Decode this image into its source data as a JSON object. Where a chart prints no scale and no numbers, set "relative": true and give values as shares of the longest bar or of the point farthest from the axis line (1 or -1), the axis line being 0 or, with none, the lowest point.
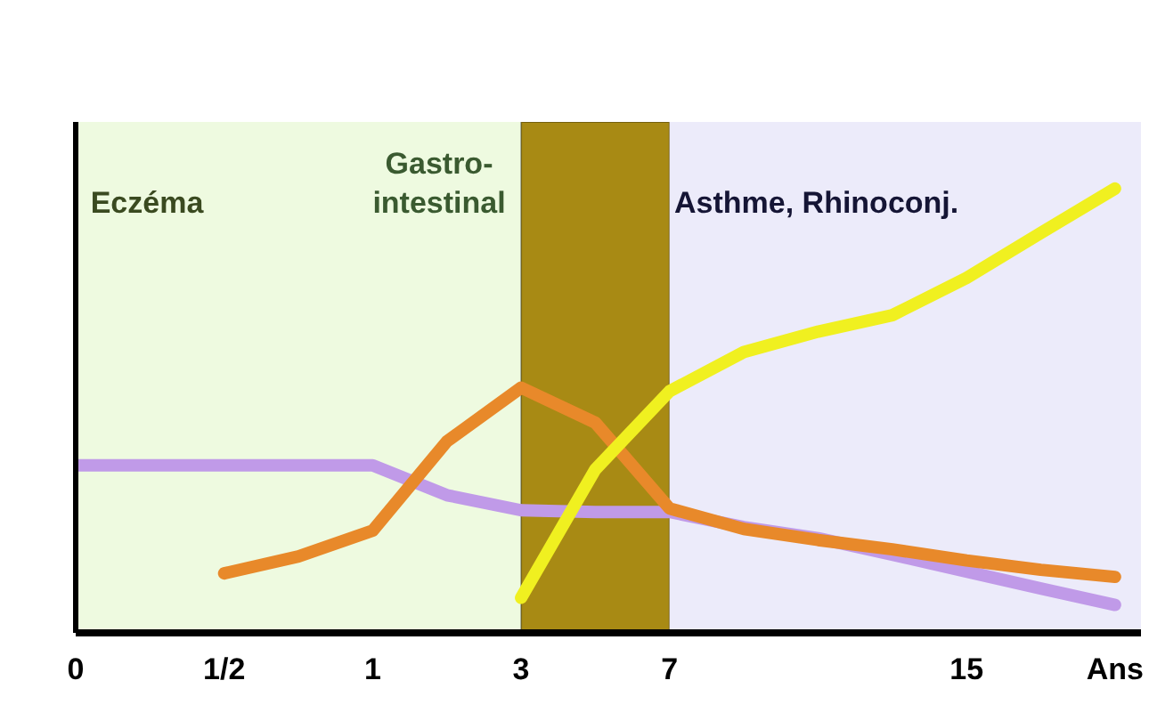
{
  "chart_data": {
    "type": "line",
    "relative": true,
    "categories": [
      "0",
      null,
      "1/2",
      null,
      "1",
      null,
      "3",
      null,
      "7",
      null,
      null,
      null,
      "15",
      null,
      "Ans"
    ],
    "series": [
      {
        "color": "#c09ae8",
        "values": [
          0.377,
          0.377,
          0.377,
          0.377,
          0.377,
          0.31,
          0.276,
          0.272,
          0.272,
          0.238,
          0.213,
          0.176,
          0.138,
          0.1,
          0.063
        ]
      },
      {
        "color": "#e8892a",
        "values": [
          null,
          null,
          0.134,
          0.172,
          0.23,
          0.431,
          0.552,
          0.473,
          0.28,
          0.234,
          0.209,
          0.188,
          0.163,
          0.142,
          0.126
        ]
      },
      {
        "color": "#f0f020",
        "values": [
          null,
          null,
          null,
          null,
          null,
          null,
          0.079,
          0.368,
          0.544,
          0.632,
          0.678,
          0.715,
          0.799,
          0.9,
          1.0
        ]
      }
    ],
    "bands": [
      {
        "axis": "x",
        "from": "0",
        "to": "3",
        "color": "#eefae0"
      },
      {
        "axis": "x",
        "from": "3",
        "to": "7",
        "color": "#a88a14"
      },
      {
        "axis": "x",
        "from": "7",
        "to": "Ans",
        "color": "#ecebfa"
      }
    ],
    "annotations": [
      "Eczéma",
      "Gastro-\nintestinal",
      "Asthme, Rhinoconj."
    ],
    "marker": "none",
    "line_style": "solid"
  }
}
